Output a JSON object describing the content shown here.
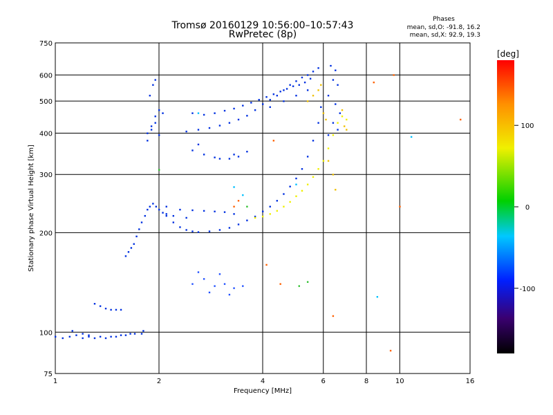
{
  "chart_data": {
    "type": "scatter",
    "title": "Tromsø 20160129 10:56:00–10:57:43",
    "subtitle": "RwPretec (8p)",
    "stats": {
      "heading": "Phases",
      "o_line": "mean, sd,O: -91.8, 16.2",
      "x_line": "mean, sd,X:  92.9, 19.3"
    },
    "xlabel": "Frequency [MHz]",
    "ylabel": "Stationary phase Virtual Height [km]",
    "x_scale": "log",
    "y_scale": "log",
    "xlim": [
      1,
      16
    ],
    "ylim": [
      75,
      750
    ],
    "xticks": [
      1,
      2,
      4,
      6,
      8,
      10,
      16
    ],
    "xgrid": [
      2,
      4,
      6,
      8,
      10
    ],
    "yticks": [
      75,
      100,
      200,
      300,
      400,
      500,
      600,
      750
    ],
    "ygrid": [
      100,
      200,
      300,
      400,
      500,
      600
    ],
    "grid": true,
    "colorbar": {
      "label": "[deg]",
      "ticks": [
        100,
        0,
        -100
      ],
      "range": [
        -180,
        180
      ]
    },
    "series": [
      {
        "color": "#0030e0",
        "phase": -95,
        "points": [
          [
            1.0,
            97
          ],
          [
            1.05,
            96
          ],
          [
            1.1,
            97
          ],
          [
            1.15,
            98
          ],
          [
            1.2,
            96
          ],
          [
            1.25,
            97
          ],
          [
            1.3,
            96
          ],
          [
            1.35,
            97
          ],
          [
            1.4,
            96
          ],
          [
            1.45,
            97
          ],
          [
            1.5,
            97
          ],
          [
            1.55,
            98
          ],
          [
            1.6,
            98
          ],
          [
            1.65,
            99
          ],
          [
            1.7,
            99
          ],
          [
            1.12,
            101
          ],
          [
            1.2,
            99
          ],
          [
            1.25,
            98
          ],
          [
            1.78,
            99
          ],
          [
            1.8,
            101
          ]
        ]
      },
      {
        "color": "#0030e0",
        "phase": -95,
        "points": [
          [
            1.3,
            122
          ],
          [
            1.35,
            120
          ],
          [
            1.4,
            118
          ],
          [
            1.45,
            117
          ],
          [
            1.5,
            117
          ],
          [
            1.55,
            117
          ]
        ]
      },
      {
        "color": "#0030e0",
        "phase": -100,
        "points": [
          [
            1.6,
            170
          ],
          [
            1.63,
            175
          ],
          [
            1.66,
            180
          ],
          [
            1.69,
            185
          ],
          [
            1.72,
            195
          ],
          [
            1.75,
            205
          ],
          [
            1.78,
            215
          ],
          [
            1.82,
            225
          ],
          [
            1.85,
            235
          ],
          [
            1.88,
            240
          ],
          [
            1.92,
            245
          ],
          [
            1.96,
            240
          ],
          [
            2.0,
            235
          ],
          [
            2.05,
            230
          ],
          [
            2.1,
            225
          ]
        ]
      },
      {
        "color": "#0030e0",
        "phase": -100,
        "points": [
          [
            1.85,
            400
          ],
          [
            1.9,
            420
          ],
          [
            1.95,
            450
          ],
          [
            2.0,
            470
          ],
          [
            2.05,
            460
          ],
          [
            1.88,
            520
          ],
          [
            1.92,
            560
          ],
          [
            1.95,
            580
          ],
          [
            1.9,
            410
          ],
          [
            2.0,
            395
          ],
          [
            1.85,
            380
          ],
          [
            1.95,
            430
          ]
        ]
      },
      {
        "color": "#0030e0",
        "phase": -100,
        "points": [
          [
            2.1,
            240
          ],
          [
            2.3,
            235
          ],
          [
            2.5,
            234
          ],
          [
            2.7,
            233
          ],
          [
            2.9,
            232
          ],
          [
            3.1,
            231
          ],
          [
            3.3,
            228
          ],
          [
            2.2,
            225
          ],
          [
            2.4,
            222
          ]
        ]
      },
      {
        "color": "#0030e0",
        "phase": -105,
        "points": [
          [
            2.1,
            228
          ],
          [
            2.2,
            215
          ],
          [
            2.3,
            208
          ],
          [
            2.4,
            204
          ],
          [
            2.5,
            202
          ],
          [
            2.6,
            201
          ],
          [
            2.8,
            202
          ],
          [
            3.0,
            204
          ],
          [
            3.2,
            207
          ],
          [
            3.4,
            212
          ],
          [
            3.6,
            218
          ],
          [
            3.8,
            224
          ],
          [
            4.0,
            232
          ],
          [
            4.2,
            240
          ],
          [
            4.4,
            250
          ],
          [
            4.6,
            262
          ],
          [
            4.8,
            276
          ],
          [
            5.0,
            292
          ],
          [
            5.2,
            312
          ],
          [
            5.4,
            340
          ],
          [
            5.6,
            380
          ],
          [
            5.8,
            430
          ],
          [
            5.9,
            480
          ]
        ]
      },
      {
        "color": "#0030e0",
        "phase": -95,
        "points": [
          [
            2.5,
            355
          ],
          [
            2.7,
            345
          ],
          [
            2.9,
            338
          ],
          [
            3.0,
            335
          ],
          [
            3.2,
            335
          ],
          [
            3.4,
            340
          ],
          [
            3.6,
            352
          ],
          [
            2.6,
            370
          ],
          [
            3.3,
            345
          ]
        ]
      },
      {
        "color": "#0030e0",
        "phase": -95,
        "points": [
          [
            2.4,
            405
          ],
          [
            2.6,
            410
          ],
          [
            2.8,
            415
          ],
          [
            3.0,
            422
          ],
          [
            3.2,
            430
          ],
          [
            3.4,
            440
          ],
          [
            3.6,
            452
          ],
          [
            3.8,
            470
          ],
          [
            4.0,
            490
          ],
          [
            4.2,
            505
          ],
          [
            4.4,
            520
          ],
          [
            4.6,
            540
          ],
          [
            4.8,
            560
          ],
          [
            5.0,
            575
          ],
          [
            5.2,
            590
          ],
          [
            5.4,
            600
          ],
          [
            5.6,
            615
          ],
          [
            5.8,
            630
          ]
        ]
      },
      {
        "color": "#0030e0",
        "phase": -95,
        "points": [
          [
            2.5,
            460
          ],
          [
            2.7,
            455
          ],
          [
            2.9,
            460
          ],
          [
            3.1,
            468
          ],
          [
            3.3,
            475
          ],
          [
            3.5,
            485
          ],
          [
            3.7,
            495
          ],
          [
            3.9,
            505
          ],
          [
            4.1,
            515
          ],
          [
            4.3,
            525
          ],
          [
            4.5,
            535
          ],
          [
            4.7,
            545
          ],
          [
            4.9,
            555
          ],
          [
            5.1,
            560
          ],
          [
            5.3,
            570
          ],
          [
            5.5,
            585
          ],
          [
            4.2,
            480
          ],
          [
            4.6,
            500
          ],
          [
            5.0,
            520
          ],
          [
            5.4,
            540
          ]
        ]
      },
      {
        "color": "#0030e0",
        "phase": -95,
        "points": [
          [
            6.3,
            640
          ],
          [
            6.5,
            620
          ],
          [
            6.4,
            580
          ],
          [
            6.6,
            560
          ],
          [
            6.2,
            520
          ],
          [
            6.5,
            490
          ],
          [
            6.7,
            460
          ],
          [
            6.4,
            430
          ],
          [
            6.6,
            410
          ],
          [
            6.2,
            395
          ]
        ]
      },
      {
        "color": "#2050ff",
        "phase": -90,
        "points": [
          [
            2.5,
            140
          ],
          [
            2.7,
            145
          ],
          [
            2.9,
            138
          ],
          [
            3.1,
            140
          ],
          [
            3.3,
            136
          ],
          [
            3.5,
            138
          ],
          [
            2.6,
            152
          ],
          [
            3.0,
            150
          ],
          [
            2.8,
            132
          ],
          [
            3.2,
            130
          ]
        ]
      },
      {
        "color": "#f0f000",
        "phase": 100,
        "points": [
          [
            3.8,
            222
          ],
          [
            4.0,
            224
          ],
          [
            4.2,
            228
          ],
          [
            4.4,
            233
          ],
          [
            4.6,
            240
          ],
          [
            4.8,
            248
          ],
          [
            5.0,
            258
          ],
          [
            5.2,
            268
          ],
          [
            5.4,
            280
          ],
          [
            5.6,
            295
          ],
          [
            5.8,
            312
          ],
          [
            6.0,
            330
          ],
          [
            6.2,
            360
          ],
          [
            6.4,
            395
          ],
          [
            6.6,
            430
          ],
          [
            6.8,
            450
          ],
          [
            7.0,
            440
          ]
        ]
      },
      {
        "color": "#f0c000",
        "phase": 110,
        "points": [
          [
            5.4,
            500
          ],
          [
            5.6,
            520
          ],
          [
            5.8,
            540
          ],
          [
            6.0,
            460
          ],
          [
            6.2,
            330
          ],
          [
            6.4,
            300
          ],
          [
            6.5,
            270
          ],
          [
            6.8,
            470
          ],
          [
            6.9,
            420
          ],
          [
            7.0,
            410
          ],
          [
            5.9,
            560
          ],
          [
            6.1,
            440
          ]
        ]
      },
      {
        "color": "#ff6000",
        "phase": 140,
        "points": [
          [
            3.4,
            250
          ],
          [
            3.3,
            240
          ],
          [
            4.1,
            160
          ],
          [
            4.5,
            140
          ],
          [
            6.4,
            112
          ],
          [
            9.4,
            88
          ],
          [
            9.6,
            600
          ],
          [
            10.0,
            240
          ],
          [
            8.4,
            570
          ],
          [
            15.0,
            440
          ],
          [
            4.3,
            380
          ]
        ]
      },
      {
        "color": "#00c0ff",
        "phase": -30,
        "points": [
          [
            3.5,
            260
          ],
          [
            3.3,
            275
          ],
          [
            5.0,
            280
          ],
          [
            10.8,
            390
          ],
          [
            8.6,
            128
          ],
          [
            2.6,
            460
          ]
        ]
      },
      {
        "color": "#30c030",
        "phase": 40,
        "points": [
          [
            3.6,
            240
          ],
          [
            2.0,
            310
          ],
          [
            5.1,
            138
          ],
          [
            5.4,
            142
          ]
        ]
      }
    ]
  }
}
